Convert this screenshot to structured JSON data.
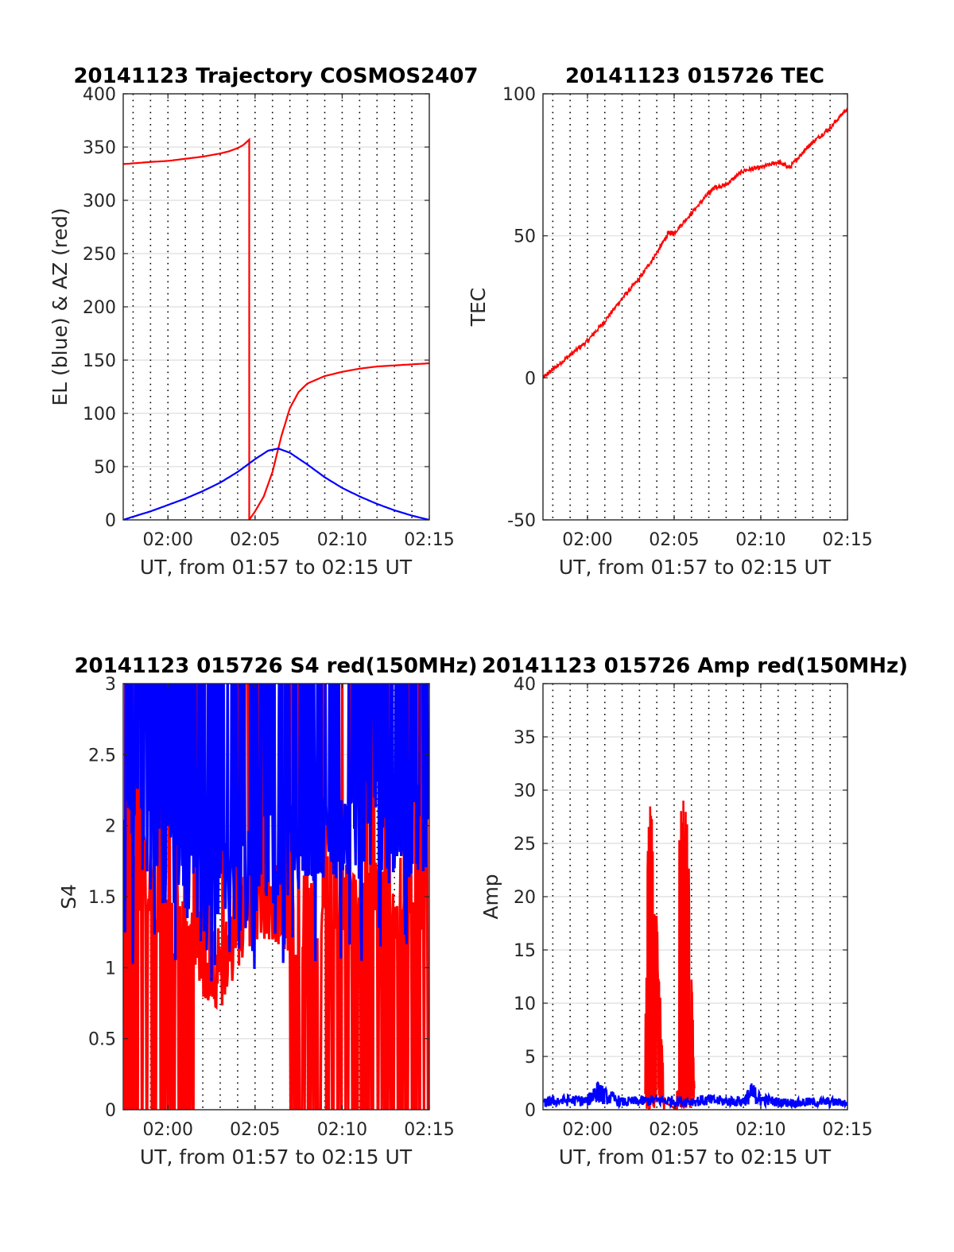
{
  "chart_data": [
    {
      "type": "line",
      "title": "20141123 Trajectory COSMOS2407",
      "xlabel": "UT, from 01:57 to 02:15 UT",
      "ylabel": "EL (blue) & AZ (red)",
      "xlim": [
        "01:57:26",
        "02:15:00"
      ],
      "ylim": [
        0,
        400
      ],
      "xticks": [
        "02:00",
        "02:05",
        "02:10",
        "02:15"
      ],
      "yticks": [
        "0",
        "50",
        "100",
        "150",
        "200",
        "250",
        "300",
        "350",
        "400"
      ],
      "grid": true,
      "series": [
        {
          "color": "#ff0000",
          "x": [
            "01:57:26",
            "01:59:00",
            "02:00:00",
            "02:01:00",
            "02:02:00",
            "02:03:00",
            "02:03:30",
            "02:04:00",
            "02:04:20",
            "02:04:40",
            "02:04:40",
            "02:05:00",
            "02:05:30",
            "02:06:00",
            "02:06:30",
            "02:07:00",
            "02:07:30",
            "02:08:00",
            "02:09:00",
            "02:10:00",
            "02:11:00",
            "02:12:00",
            "02:13:00",
            "02:14:00",
            "02:15:00"
          ],
          "y": [
            334,
            336,
            337,
            339,
            341,
            344,
            346,
            349,
            352,
            357,
            0,
            8,
            22,
            45,
            78,
            105,
            120,
            128,
            135,
            139,
            142,
            144,
            145,
            146,
            147
          ]
        },
        {
          "color": "#0000ff",
          "x": [
            "01:57:26",
            "01:58:00",
            "01:59:00",
            "02:00:00",
            "02:01:00",
            "02:02:00",
            "02:03:00",
            "02:04:00",
            "02:05:00",
            "02:05:45",
            "02:06:20",
            "02:07:00",
            "02:08:00",
            "02:09:00",
            "02:10:00",
            "02:11:00",
            "02:12:00",
            "02:13:00",
            "02:14:00",
            "02:15:00"
          ],
          "y": [
            0,
            3,
            8,
            14,
            20,
            27,
            35,
            45,
            57,
            65,
            67,
            63,
            52,
            40,
            30,
            22,
            15,
            9,
            4,
            0
          ]
        }
      ]
    },
    {
      "type": "line",
      "title": "20141123 015726 TEC",
      "xlabel": "UT, from 01:57 to 02:15 UT",
      "ylabel": "TEC",
      "xlim": [
        "01:57:26",
        "02:15:00"
      ],
      "ylim": [
        -50,
        100
      ],
      "xticks": [
        "02:00",
        "02:05",
        "02:10",
        "02:15"
      ],
      "yticks": [
        "-50",
        "0",
        "50",
        "100"
      ],
      "grid": true,
      "series": [
        {
          "color": "#ff0000",
          "x": [
            "01:57:26",
            "01:58:00",
            "01:59:00",
            "02:00:00",
            "02:01:00",
            "02:02:00",
            "02:03:00",
            "02:04:00",
            "02:04:40",
            "02:05:00",
            "02:06:00",
            "02:07:00",
            "02:07:20",
            "02:08:00",
            "02:09:00",
            "02:10:00",
            "02:11:00",
            "02:11:40",
            "02:12:30",
            "02:13:00",
            "02:14:00",
            "02:15:00"
          ],
          "y": [
            0,
            3,
            8,
            13,
            20,
            28,
            35,
            44,
            51,
            51,
            58,
            65,
            67,
            68,
            73,
            74,
            76,
            74,
            80,
            83,
            88,
            95
          ]
        }
      ]
    },
    {
      "type": "line",
      "title": "20141123 015726 S4 red(150MHz)",
      "xlabel": "UT, from 01:57 to 02:15 UT",
      "ylabel": "S4",
      "xlim": [
        "01:57:26",
        "02:15:00"
      ],
      "ylim": [
        0,
        3
      ],
      "xticks": [
        "02:00",
        "02:05",
        "02:10",
        "02:15"
      ],
      "yticks": [
        "0",
        "0.5",
        "1",
        "1.5",
        "2",
        "2.5",
        "3"
      ],
      "grid": true,
      "series": [
        {
          "color": "#ff0000",
          "x": [
            "01:57:30",
            "01:58:00",
            "01:59:00",
            "02:00:00",
            "02:01:00",
            "02:02:00",
            "02:03:00",
            "02:04:00",
            "02:05:00",
            "02:06:00",
            "02:07:00",
            "02:08:00",
            "02:09:00",
            "02:10:00",
            "02:11:00",
            "02:12:00",
            "02:13:00",
            "02:14:00",
            "02:15:00"
          ],
          "y": [
            1.8,
            1.75,
            1.6,
            1.4,
            1.3,
            1.1,
            1.0,
            1.3,
            1.5,
            1.5,
            1.4,
            1.35,
            1.5,
            1.55,
            1.45,
            1.5,
            1.5,
            1.5,
            1.5
          ]
        },
        {
          "color": "#0000ff",
          "x": [
            "01:57:30",
            "01:58:00",
            "01:59:00",
            "02:00:00",
            "02:01:00",
            "02:02:00",
            "02:03:00",
            "02:04:00",
            "02:05:00",
            "02:06:00",
            "02:07:00",
            "02:08:00",
            "02:09:00",
            "02:10:00",
            "02:11:00",
            "02:12:00",
            "02:13:00",
            "02:14:00",
            "02:15:00"
          ],
          "y": [
            2.0,
            1.9,
            1.8,
            1.7,
            1.6,
            1.6,
            1.5,
            1.5,
            1.6,
            1.7,
            1.8,
            1.85,
            1.9,
            1.9,
            1.9,
            1.9,
            1.85,
            1.9,
            1.9
          ]
        }
      ]
    },
    {
      "type": "line",
      "title": "20141123 015726 Amp red(150MHz)",
      "xlabel": "UT, from 01:57 to 02:15 UT",
      "ylabel": "Amp",
      "xlim": [
        "01:57:26",
        "02:15:00"
      ],
      "ylim": [
        0,
        40
      ],
      "xticks": [
        "02:00",
        "02:05",
        "02:10",
        "02:15"
      ],
      "yticks": [
        "0",
        "5",
        "10",
        "15",
        "20",
        "25",
        "30",
        "35",
        "40"
      ],
      "grid": true,
      "series": [
        {
          "color": "#ff0000",
          "x": [
            "02:03:20",
            "02:03:30",
            "02:03:40",
            "02:03:50",
            "02:04:00",
            "02:04:10",
            "02:04:20",
            "02:04:30",
            "02:05:10",
            "02:05:20",
            "02:05:30",
            "02:05:40",
            "02:05:50",
            "02:06:00",
            "02:06:10"
          ],
          "y": [
            7,
            28,
            30,
            22,
            18,
            12,
            5,
            0,
            12,
            30,
            31,
            31,
            25,
            15,
            2
          ]
        },
        {
          "color": "#0000ff",
          "x": [
            "01:57:30",
            "01:58:00",
            "01:59:00",
            "02:00:00",
            "02:00:30",
            "02:01:00",
            "02:02:00",
            "02:03:00",
            "02:04:00",
            "02:05:00",
            "02:06:00",
            "02:07:00",
            "02:08:00",
            "02:09:00",
            "02:09:30",
            "02:10:00",
            "02:11:00",
            "02:12:00",
            "02:13:00",
            "02:14:00",
            "02:15:00"
          ],
          "y": [
            0.8,
            1.0,
            1.1,
            1.0,
            2.2,
            1.6,
            0.9,
            1.0,
            1.1,
            1.0,
            1.0,
            1.1,
            1.0,
            1.0,
            2.0,
            1.2,
            0.9,
            0.8,
            0.9,
            0.9,
            0.8
          ]
        }
      ]
    }
  ]
}
